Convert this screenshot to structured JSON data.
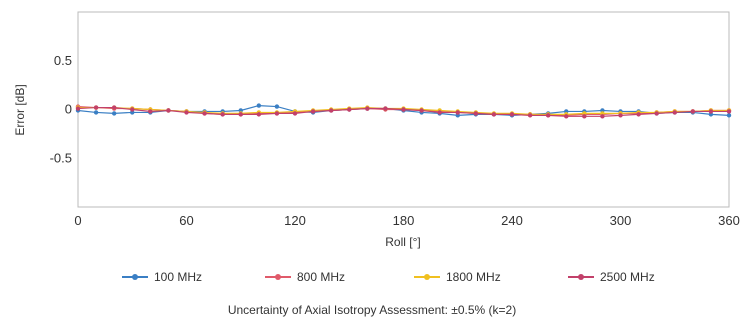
{
  "chart_data": {
    "type": "line",
    "xlabel": "Roll [°]",
    "ylabel": "Error [dB]",
    "xlim": [
      0,
      360
    ],
    "ylim": [
      -1,
      1
    ],
    "x_ticks": [
      "0",
      "60",
      "120",
      "180",
      "240",
      "300",
      "360"
    ],
    "y_ticks": [
      "0.5",
      "0",
      "-0.5"
    ],
    "grid": false,
    "legend_position": "bottom",
    "x": [
      0,
      10,
      20,
      30,
      40,
      50,
      60,
      70,
      80,
      90,
      100,
      110,
      120,
      130,
      140,
      150,
      160,
      170,
      180,
      190,
      200,
      210,
      220,
      230,
      240,
      250,
      260,
      270,
      280,
      290,
      300,
      310,
      320,
      330,
      340,
      350,
      360
    ],
    "series": [
      {
        "name": "100 MHz",
        "color": "#3a7fc4",
        "values": [
          -0.01,
          -0.03,
          -0.04,
          -0.03,
          -0.03,
          -0.01,
          -0.02,
          -0.02,
          -0.02,
          -0.01,
          0.04,
          0.03,
          -0.02,
          -0.03,
          -0.01,
          0.0,
          0.01,
          0.01,
          -0.01,
          -0.03,
          -0.04,
          -0.06,
          -0.05,
          -0.05,
          -0.06,
          -0.05,
          -0.04,
          -0.02,
          -0.02,
          -0.01,
          -0.02,
          -0.02,
          -0.04,
          -0.03,
          -0.03,
          -0.05,
          -0.06
        ]
      },
      {
        "name": "800 MHz",
        "color": "#e05a6a",
        "values": [
          0.03,
          0.02,
          0.01,
          0.01,
          0.0,
          -0.01,
          -0.02,
          -0.04,
          -0.05,
          -0.05,
          -0.04,
          -0.04,
          -0.03,
          -0.02,
          -0.01,
          0.0,
          0.01,
          0.0,
          0.0,
          -0.01,
          -0.02,
          -0.03,
          -0.04,
          -0.05,
          -0.05,
          -0.05,
          -0.06,
          -0.06,
          -0.05,
          -0.05,
          -0.04,
          -0.04,
          -0.03,
          -0.02,
          -0.02,
          -0.01,
          -0.01
        ]
      },
      {
        "name": "1800 MHz",
        "color": "#f0c020",
        "values": [
          0.02,
          0.02,
          0.02,
          0.01,
          0.0,
          -0.01,
          -0.02,
          -0.03,
          -0.04,
          -0.04,
          -0.03,
          -0.03,
          -0.02,
          -0.01,
          0.0,
          0.01,
          0.02,
          0.01,
          0.01,
          0.0,
          -0.01,
          -0.02,
          -0.03,
          -0.04,
          -0.04,
          -0.05,
          -0.05,
          -0.05,
          -0.04,
          -0.04,
          -0.04,
          -0.03,
          -0.03,
          -0.02,
          -0.02,
          -0.01,
          -0.01
        ]
      },
      {
        "name": "2500 MHz",
        "color": "#c2406a",
        "values": [
          0.01,
          0.02,
          0.02,
          0.0,
          -0.02,
          -0.01,
          -0.03,
          -0.04,
          -0.05,
          -0.05,
          -0.05,
          -0.04,
          -0.04,
          -0.02,
          -0.01,
          0.0,
          0.01,
          0.01,
          0.0,
          -0.01,
          -0.03,
          -0.03,
          -0.04,
          -0.05,
          -0.05,
          -0.06,
          -0.06,
          -0.07,
          -0.07,
          -0.07,
          -0.06,
          -0.05,
          -0.04,
          -0.03,
          -0.02,
          -0.02,
          -0.02
        ]
      }
    ],
    "footnote": "Uncertainty of Axial Isotropy Assessment: ±0.5% (k=2)"
  }
}
